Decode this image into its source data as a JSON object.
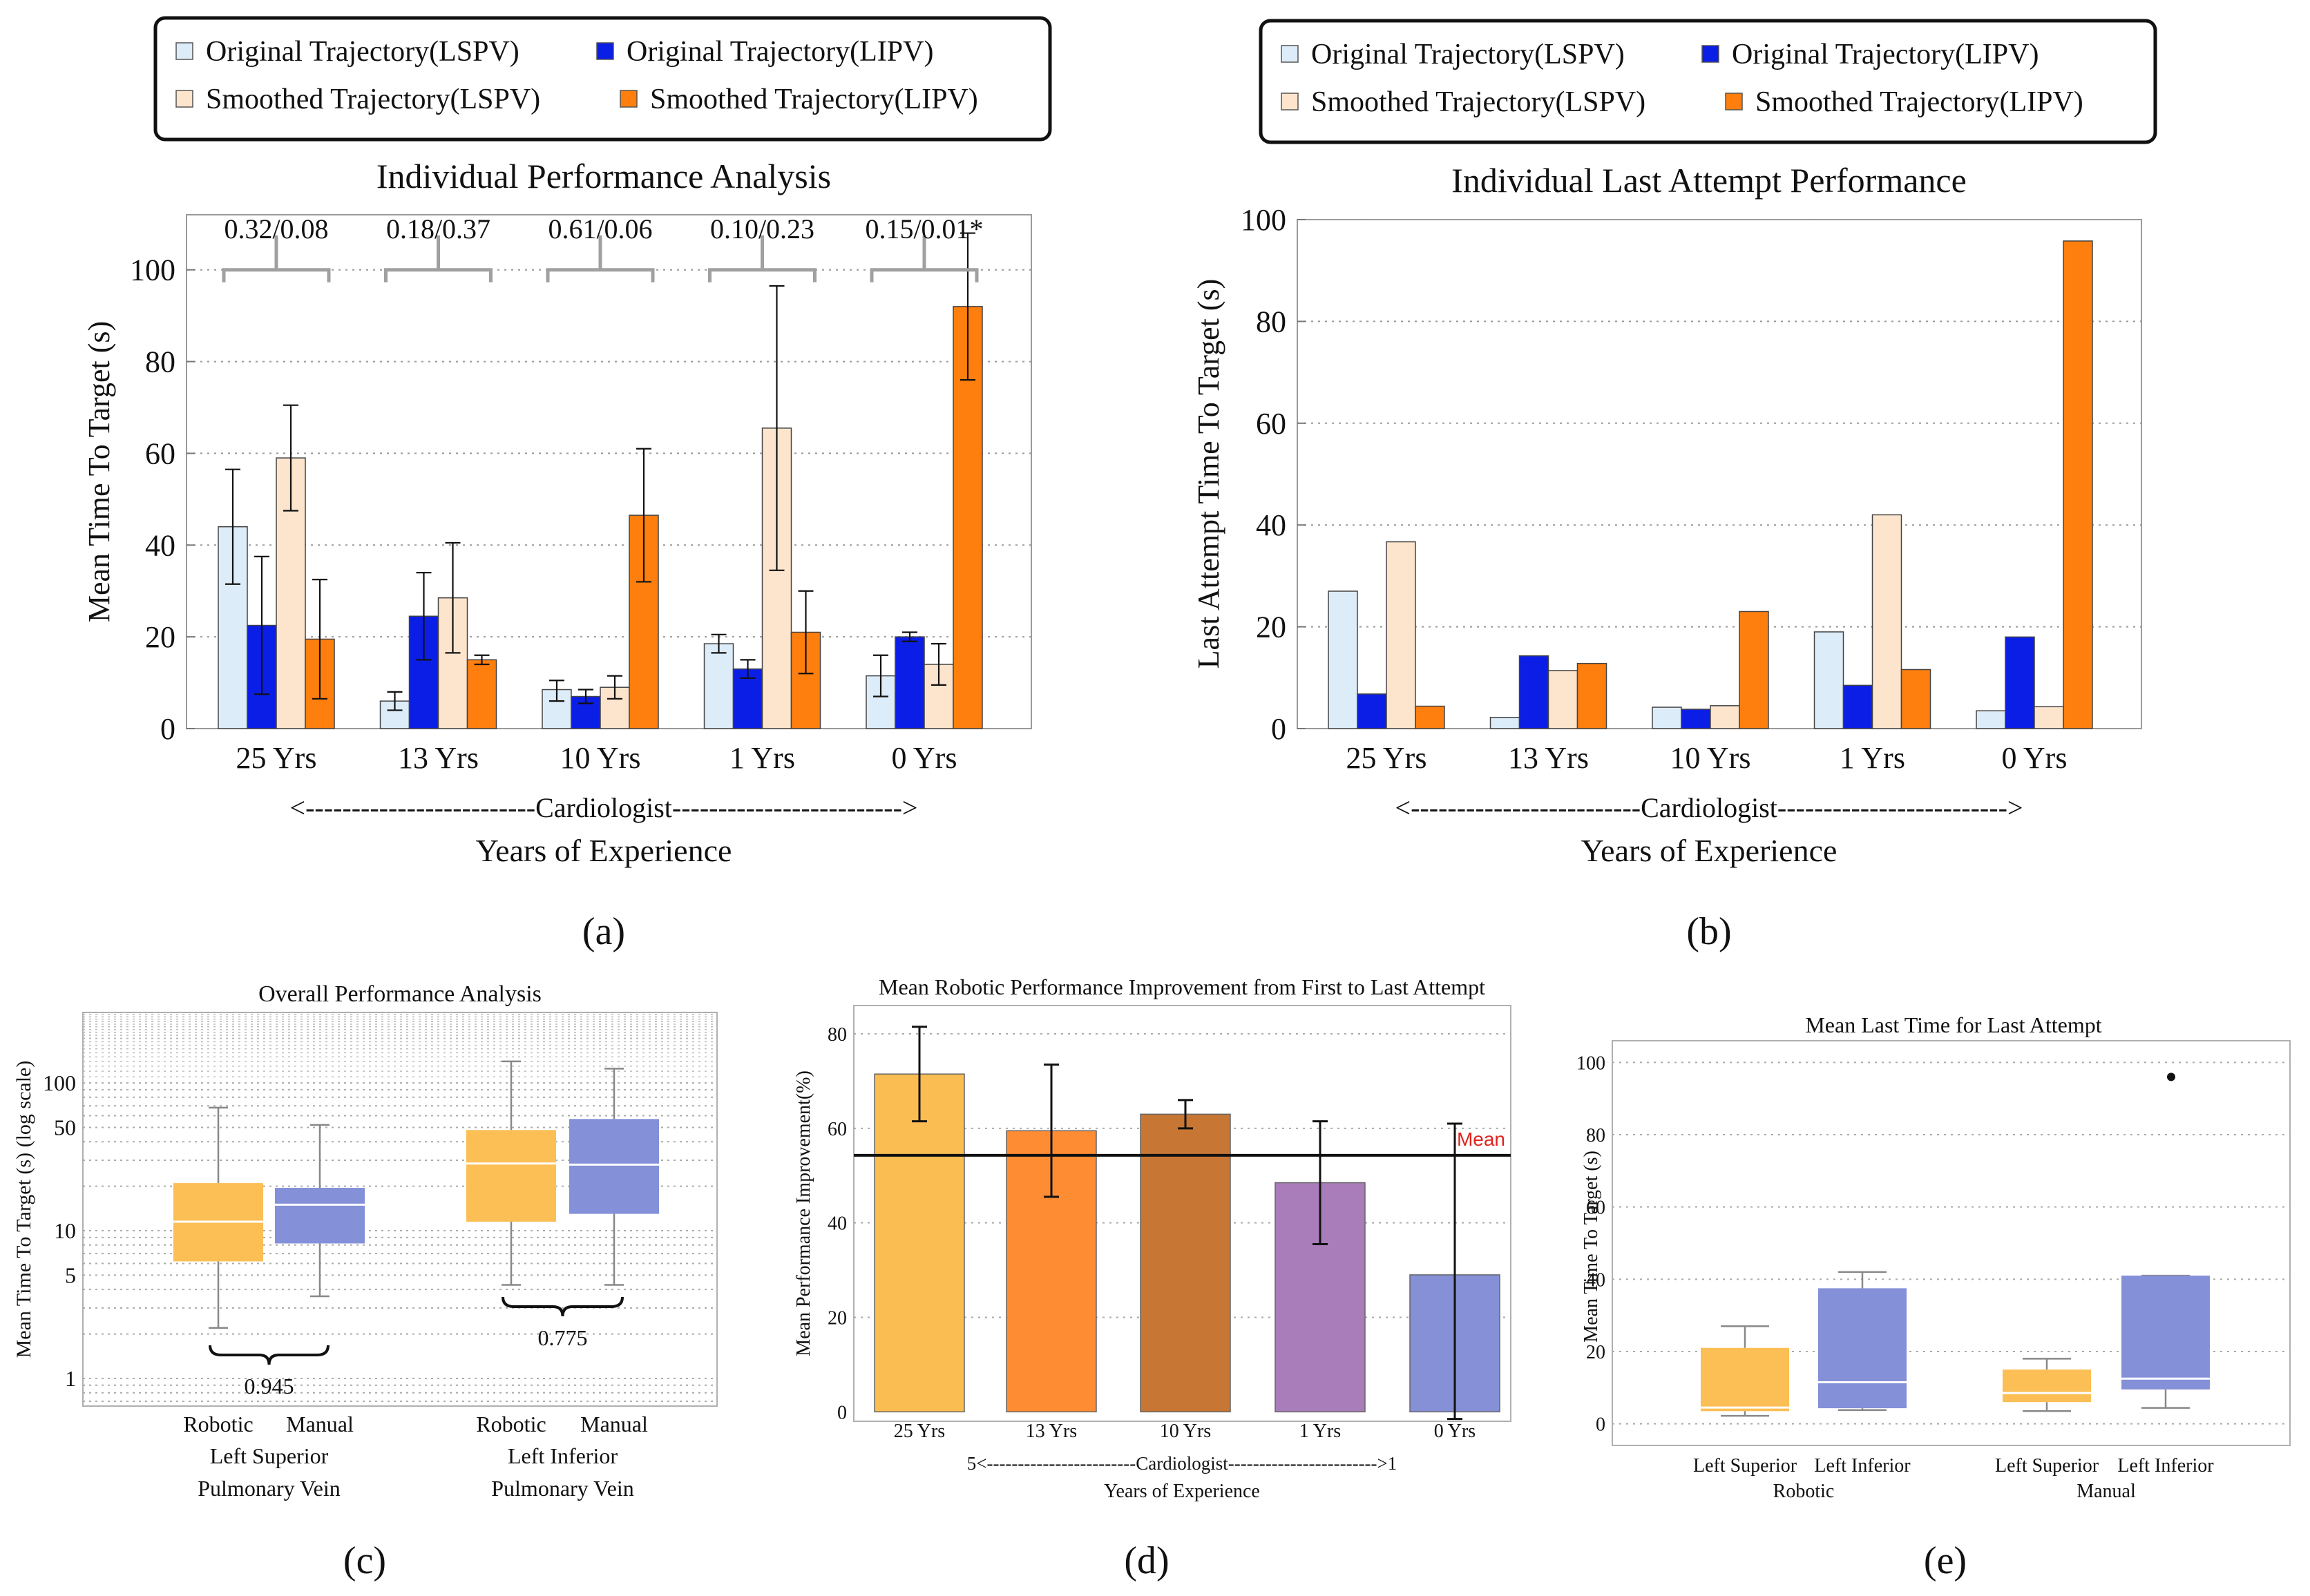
{
  "colors": {
    "orig_lspv": "#dcecf9",
    "orig_lipv": "#0b1ee6",
    "smooth_lspv": "#fde4cc",
    "smooth_lipv": "#ff7f0e",
    "box_orange": "#fbbf55",
    "box_blue": "#8490d8",
    "d_bars": [
      "#f9bd52",
      "#fd8c33",
      "#c77634",
      "#a97db9",
      "#8590d7"
    ],
    "mean_label": "#e0231c"
  },
  "legend": {
    "items": [
      "Original Trajectory(LSPV)",
      "Original Trajectory(LIPV)",
      "Smoothed Trajectory(LSPV)",
      "Smoothed Trajectory(LIPV)"
    ]
  },
  "panel_labels": [
    "(a)",
    "(b)",
    "(c)",
    "(d)",
    "(e)"
  ],
  "chart_data": [
    {
      "id": "a",
      "type": "bar",
      "title": "Individual Performance Analysis",
      "ylabel": "Mean Time To Target (s)",
      "xlabel_arrow": "<-------------------------Cardiologist------------------------->",
      "xlabel": "Years of Experience",
      "categories": [
        "25 Yrs",
        "13 Yrs",
        "10 Yrs",
        "1 Yrs",
        "0 Yrs"
      ],
      "ylim": [
        0,
        112
      ],
      "yticks": [
        0,
        20,
        40,
        60,
        80,
        100
      ],
      "series": [
        {
          "name": "Original Trajectory(LSPV)",
          "values": [
            44,
            6,
            8.5,
            18.5,
            11.5
          ],
          "err_low": [
            31.5,
            4,
            6,
            16.5,
            7
          ],
          "err_high": [
            56.5,
            8,
            10.5,
            20.5,
            16
          ]
        },
        {
          "name": "Original Trajectory(LIPV)",
          "values": [
            22.5,
            24.5,
            7,
            13,
            20
          ],
          "err_low": [
            7.5,
            15,
            5.5,
            11,
            19
          ],
          "err_high": [
            37.5,
            34,
            8.5,
            15,
            21
          ]
        },
        {
          "name": "Smoothed Trajectory(LSPV)",
          "values": [
            59,
            28.5,
            9,
            65.5,
            14
          ],
          "err_low": [
            47.5,
            16.5,
            6.5,
            34.5,
            9.5
          ],
          "err_high": [
            70.5,
            40.5,
            11.5,
            96.5,
            18.5
          ]
        },
        {
          "name": "Smoothed Trajectory(LIPV)",
          "values": [
            19.5,
            15,
            46.5,
            21,
            92
          ],
          "err_low": [
            6.5,
            14,
            32,
            12,
            76
          ],
          "err_high": [
            32.5,
            16,
            61,
            30,
            108
          ]
        }
      ],
      "p_values": [
        "0.32/0.08",
        "0.18/0.37",
        "0.61/0.06",
        "0.10/0.23",
        "0.15/0.01*"
      ]
    },
    {
      "id": "b",
      "type": "bar",
      "title": "Individual Last Attempt Performance",
      "ylabel": "Last Attempt Time To Target (s)",
      "xlabel_arrow": "<-------------------------Cardiologist------------------------->",
      "xlabel": "Years of Experience",
      "categories": [
        "25 Yrs",
        "13 Yrs",
        "10 Yrs",
        "1 Yrs",
        "0 Yrs"
      ],
      "ylim": [
        0,
        100
      ],
      "yticks": [
        0,
        20,
        40,
        60,
        80,
        100
      ],
      "series": [
        {
          "name": "Original Trajectory(LSPV)",
          "values": [
            27,
            2.2,
            4.2,
            19,
            3.5
          ]
        },
        {
          "name": "Original Trajectory(LIPV)",
          "values": [
            6.8,
            14.3,
            3.8,
            8.5,
            18
          ]
        },
        {
          "name": "Smoothed Trajectory(LSPV)",
          "values": [
            36.7,
            11.4,
            4.5,
            42,
            4.3
          ]
        },
        {
          "name": "Smoothed Trajectory(LIPV)",
          "values": [
            4.4,
            12.8,
            23,
            11.6,
            95.8
          ]
        }
      ]
    },
    {
      "id": "c",
      "type": "box",
      "title": "Overall Performance Analysis",
      "ylabel": "Mean Time To Target (s) (log scale)",
      "yscale": "log",
      "ylim": [
        0.65,
        300
      ],
      "yticks": [
        1,
        5,
        10,
        50,
        100
      ],
      "ytick_labels": [
        "1",
        "5",
        "10",
        "50",
        "100"
      ],
      "boxes": [
        {
          "label": "Robotic",
          "group": 0,
          "whisker_low": 2.2,
          "q1": 6.2,
          "median": 11.5,
          "q3": 21,
          "whisker_high": 68,
          "color": "orange"
        },
        {
          "label": "Manual",
          "group": 0,
          "whisker_low": 3.6,
          "q1": 8.2,
          "median": 15,
          "q3": 19.5,
          "whisker_high": 52,
          "color": "blue"
        },
        {
          "label": "Robotic",
          "group": 1,
          "whisker_low": 4.3,
          "q1": 11.5,
          "median": 28.5,
          "q3": 48,
          "whisker_high": 140,
          "color": "orange"
        },
        {
          "label": "Manual",
          "group": 1,
          "whisker_low": 4.3,
          "q1": 13,
          "median": 28,
          "q3": 57,
          "whisker_high": 125,
          "color": "blue"
        }
      ],
      "groups": [
        {
          "line1": "Left Superior",
          "line2": "Pulmonary Vein",
          "p_value": "0.945"
        },
        {
          "line1": "Left Inferior",
          "line2": "Pulmonary Vein",
          "p_value": "0.775"
        }
      ]
    },
    {
      "id": "d",
      "type": "bar",
      "title": "Mean Robotic Performance Improvement from First to Last Attempt",
      "ylabel": "Mean Performance Improvement(%)",
      "xlabel_arrow": "5<------------------------Cardiologist------------------------>1",
      "xlabel": "Years of Experience",
      "categories": [
        "25 Yrs",
        "13 Yrs",
        "10 Yrs",
        "1 Yrs",
        "0 Yrs"
      ],
      "values": [
        71.5,
        59.5,
        63,
        48.5,
        29
      ],
      "err_low": [
        61.5,
        45.5,
        60,
        35.5,
        -1.5
      ],
      "err_high": [
        81.5,
        73.5,
        66,
        61.5,
        61
      ],
      "ylim": [
        -2,
        86
      ],
      "yticks": [
        0,
        20,
        40,
        60,
        80
      ],
      "mean_line": 54.3,
      "mean_label": "Mean"
    },
    {
      "id": "e",
      "type": "box",
      "title": "Mean Last Time for Last Attempt",
      "ylabel": "Mean Time To Target (s)",
      "ylim": [
        -6,
        106
      ],
      "yticks": [
        0,
        20,
        40,
        60,
        80,
        100
      ],
      "boxes": [
        {
          "label": "Left Superior",
          "group": 0,
          "whisker_low": 2.2,
          "q1": 3.5,
          "median": 4.5,
          "q3": 21,
          "whisker_high": 27,
          "color": "orange"
        },
        {
          "label": "Left Inferior",
          "group": 0,
          "whisker_low": 3.8,
          "q1": 4.3,
          "median": 11.5,
          "q3": 37.5,
          "whisker_high": 42,
          "color": "blue"
        },
        {
          "label": "Left Superior",
          "group": 1,
          "whisker_low": 3.5,
          "q1": 6,
          "median": 8.5,
          "q3": 15,
          "whisker_high": 18,
          "color": "orange"
        },
        {
          "label": "Left Inferior",
          "group": 1,
          "whisker_low": 4.4,
          "q1": 9.5,
          "median": 12.5,
          "q3": 41,
          "whisker_high": 41,
          "color": "blue",
          "outlier": 96
        }
      ],
      "groups": [
        {
          "label": "Robotic"
        },
        {
          "label": "Manual"
        }
      ]
    }
  ]
}
